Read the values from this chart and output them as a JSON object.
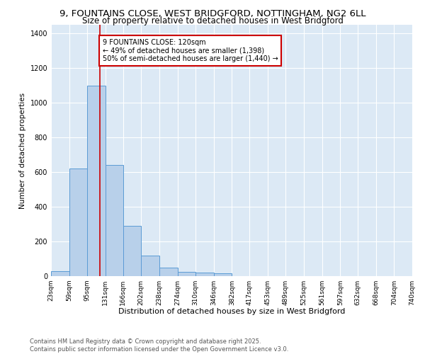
{
  "title1": "9, FOUNTAINS CLOSE, WEST BRIDGFORD, NOTTINGHAM, NG2 6LL",
  "title2": "Size of property relative to detached houses in West Bridgford",
  "xlabel": "Distribution of detached houses by size in West Bridgford",
  "ylabel": "Number of detached properties",
  "bar_color": "#b8d0ea",
  "bar_edge_color": "#5b9bd5",
  "bg_color": "#dce9f5",
  "grid_color": "#ffffff",
  "vline_x": 120,
  "vline_color": "#cc0000",
  "annotation_text": "9 FOUNTAINS CLOSE: 120sqm\n← 49% of detached houses are smaller (1,398)\n50% of semi-detached houses are larger (1,440) →",
  "annotation_box_color": "#ffffff",
  "annotation_box_edge": "#cc0000",
  "bin_edges": [
    23,
    59,
    95,
    131,
    166,
    202,
    238,
    274,
    310,
    346,
    382,
    417,
    453,
    489,
    525,
    561,
    597,
    632,
    668,
    704,
    740
  ],
  "bin_values": [
    30,
    620,
    1100,
    640,
    290,
    120,
    50,
    25,
    20,
    15,
    0,
    0,
    0,
    0,
    0,
    0,
    0,
    0,
    0,
    0
  ],
  "ylim": [
    0,
    1450
  ],
  "yticks": [
    0,
    200,
    400,
    600,
    800,
    1000,
    1200,
    1400
  ],
  "footer_text": "Contains HM Land Registry data © Crown copyright and database right 2025.\nContains public sector information licensed under the Open Government Licence v3.0.",
  "title1_fontsize": 9.5,
  "title2_fontsize": 8.5,
  "xlabel_fontsize": 8,
  "ylabel_fontsize": 7.5,
  "tick_fontsize": 6.5,
  "ytick_fontsize": 7,
  "annotation_fontsize": 7,
  "footer_fontsize": 6
}
